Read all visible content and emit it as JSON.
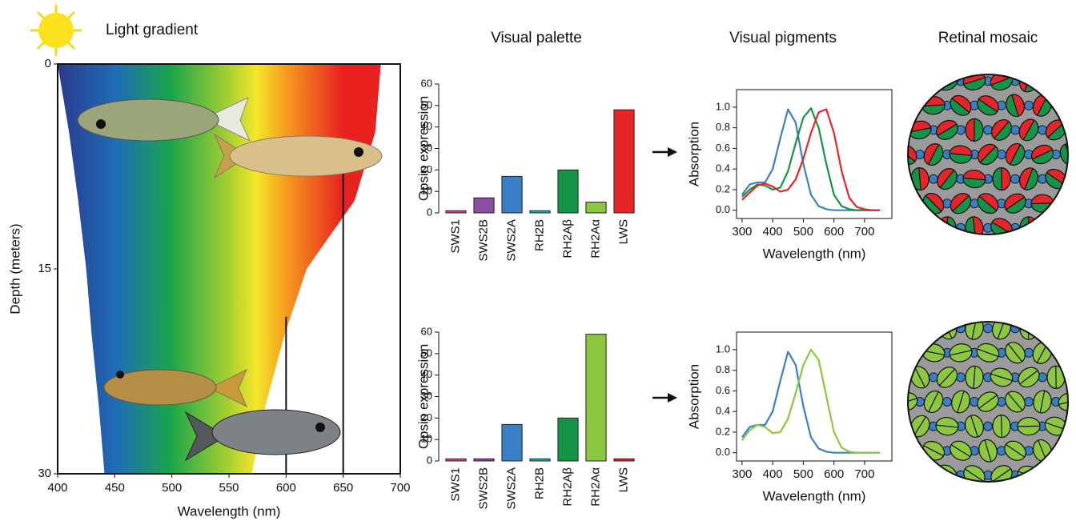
{
  "chart_data": [
    {
      "type": "spectrum",
      "title": "Light gradient",
      "xlabel": "Wavelength (nm)",
      "ylabel": "Depth (meters)",
      "xlim": [
        400,
        700
      ],
      "xticks": [
        400,
        450,
        500,
        550,
        600,
        650,
        700
      ],
      "ylim": [
        30,
        0
      ],
      "yticks": [
        0,
        15,
        30
      ],
      "range_depth": [
        0,
        5,
        10,
        15,
        20,
        25,
        30
      ],
      "range_min": [
        400,
        410,
        418,
        425,
        430,
        436,
        441
      ],
      "range_max": [
        683,
        678,
        660,
        618,
        598,
        582,
        570
      ],
      "vlines": [
        {
          "x": 600,
          "y_from": 18.5
        },
        {
          "x": 650,
          "y_from": 7.6
        }
      ]
    },
    {
      "type": "bar",
      "title": "Visual palette",
      "ylabel": "Opsin expression",
      "categories": [
        "SWS1",
        "SWS2B",
        "SWS2A",
        "RH2B",
        "RH2Aβ",
        "RH2Aα",
        "LWS"
      ],
      "values": [
        1,
        7,
        17,
        1,
        20,
        5,
        48
      ],
      "colors": [
        "#d9479b",
        "#8a4fa0",
        "#3a7fc4",
        "#26b3b0",
        "#159447",
        "#8dc63f",
        "#e52528"
      ],
      "ylim": [
        0,
        60
      ],
      "yticks": [
        0,
        10,
        20,
        30,
        40,
        50,
        60
      ]
    },
    {
      "type": "bar",
      "ylabel": "Opsin expression",
      "categories": [
        "SWS1",
        "SWS2B",
        "SWS2A",
        "RH2B",
        "RH2Aβ",
        "RH2Aα",
        "LWS"
      ],
      "values": [
        1,
        1,
        17,
        1,
        20,
        59,
        1
      ],
      "colors": [
        "#d9479b",
        "#8a4fa0",
        "#3a7fc4",
        "#26b3b0",
        "#159447",
        "#8dc63f",
        "#e52528"
      ],
      "ylim": [
        0,
        60
      ],
      "yticks": [
        0,
        10,
        20,
        30,
        40,
        50,
        60
      ]
    },
    {
      "type": "line",
      "title": "Visual pigments",
      "xlabel": "Wavelength (nm)",
      "ylabel": "Absorption",
      "x": [
        300,
        325,
        350,
        375,
        400,
        425,
        450,
        475,
        500,
        525,
        550,
        575,
        600,
        625,
        650,
        675,
        700,
        725,
        750
      ],
      "series": [
        {
          "color": "#3a7fc4",
          "values": [
            0.15,
            0.25,
            0.27,
            0.27,
            0.4,
            0.7,
            0.98,
            0.85,
            0.45,
            0.15,
            0.04,
            0.01,
            0,
            0,
            0,
            0,
            0,
            0,
            0
          ]
        },
        {
          "color": "#159447",
          "values": [
            0.13,
            0.2,
            0.25,
            0.24,
            0.2,
            0.22,
            0.38,
            0.65,
            0.9,
            0.99,
            0.8,
            0.45,
            0.15,
            0.04,
            0.01,
            0,
            0,
            0,
            0
          ]
        },
        {
          "color": "#e52528",
          "values": [
            0.1,
            0.17,
            0.24,
            0.26,
            0.23,
            0.18,
            0.2,
            0.3,
            0.5,
            0.75,
            0.95,
            0.98,
            0.75,
            0.38,
            0.12,
            0.03,
            0.01,
            0,
            0
          ]
        }
      ],
      "xlim": [
        282,
        789
      ],
      "xticks": [
        300,
        400,
        500,
        600,
        700
      ],
      "ylim": [
        -0.08,
        1.17
      ],
      "yticks": [
        {
          "value": 0,
          "label": "0.0"
        },
        0.2,
        0.4,
        0.6,
        0.8,
        {
          "value": 1,
          "label": "1.0"
        }
      ]
    },
    {
      "type": "line",
      "xlabel": "Wavelength (nm)",
      "ylabel": "Absorption",
      "x": [
        300,
        325,
        350,
        375,
        400,
        425,
        450,
        475,
        500,
        525,
        550,
        575,
        600,
        625,
        650,
        675,
        700,
        725,
        750
      ],
      "series": [
        {
          "color": "#3a7fc4",
          "values": [
            0.15,
            0.25,
            0.27,
            0.27,
            0.4,
            0.7,
            0.98,
            0.85,
            0.45,
            0.15,
            0.04,
            0.01,
            0,
            0,
            0,
            0,
            0,
            0,
            0
          ]
        },
        {
          "color": "#8dc63f",
          "values": [
            0.12,
            0.22,
            0.27,
            0.25,
            0.19,
            0.2,
            0.33,
            0.58,
            0.85,
            1.0,
            0.9,
            0.55,
            0.2,
            0.05,
            0.01,
            0,
            0,
            0,
            0
          ]
        }
      ],
      "xlim": [
        282,
        789
      ],
      "xticks": [
        300,
        400,
        500,
        600,
        700
      ],
      "ylim": [
        -0.08,
        1.17
      ],
      "yticks": [
        {
          "value": 0,
          "label": "0.0"
        },
        0.2,
        0.4,
        0.6,
        0.8,
        {
          "value": 1,
          "label": "1.0"
        }
      ]
    },
    {
      "type": "mosaic",
      "title": "Retinal mosaic",
      "colors": [
        "#e52528",
        "#159447"
      ]
    },
    {
      "type": "mosaic",
      "colors": [
        "#8dc63f",
        "#8dc63f"
      ]
    }
  ]
}
